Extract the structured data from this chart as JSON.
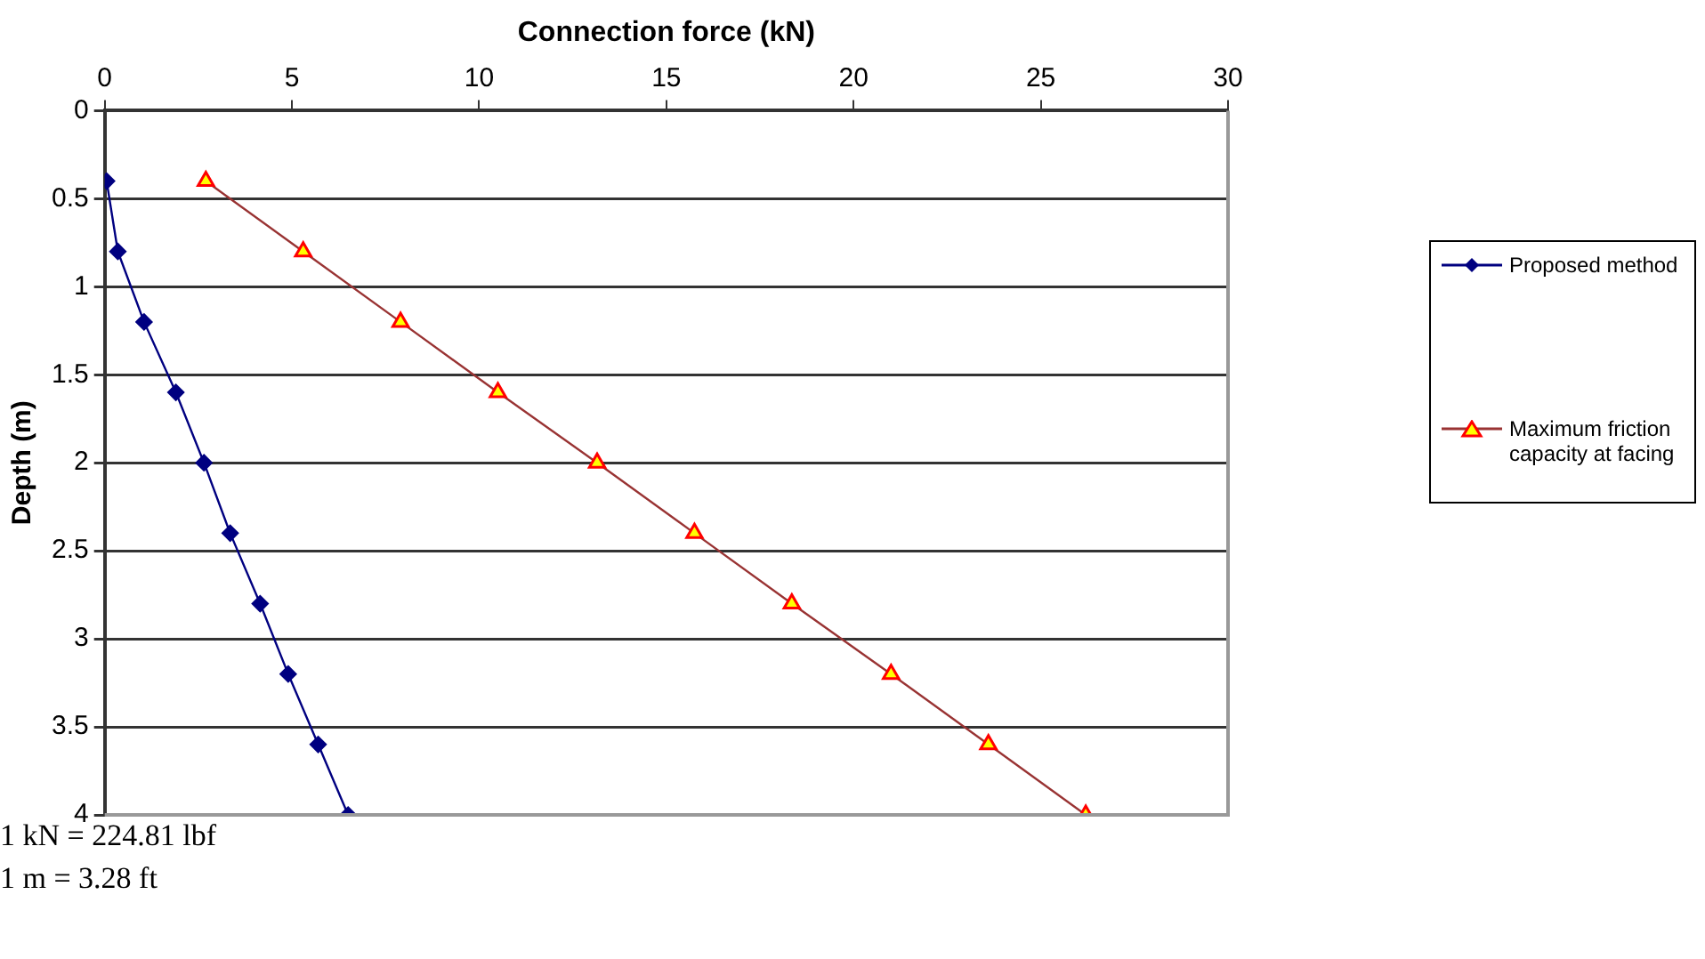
{
  "chart_data": {
    "type": "line",
    "xlabel": "Connection force (kN)",
    "ylabel": "Depth (m)",
    "xlim": [
      0,
      30
    ],
    "xticks": [
      0,
      5,
      10,
      15,
      20,
      25,
      30
    ],
    "ylim": [
      4,
      0
    ],
    "yticks": [
      0,
      0.5,
      1,
      1.5,
      2,
      2.5,
      3,
      3.5,
      4
    ],
    "grid": "y",
    "legend": "right",
    "series": [
      {
        "name": "Proposed method",
        "color": "#000080",
        "marker": "diamond",
        "x": [
          0.05,
          0.35,
          1.05,
          1.9,
          2.65,
          3.35,
          4.15,
          4.9,
          5.7,
          6.5
        ],
        "values": [
          0.4,
          0.8,
          1.2,
          1.6,
          2.0,
          2.4,
          2.8,
          3.2,
          3.6,
          4.0
        ]
      },
      {
        "name": "Maximum friction capacity at facing",
        "color": "#993333",
        "marker": "triangle",
        "x": [
          2.7,
          5.3,
          7.9,
          10.5,
          13.15,
          15.75,
          18.35,
          21.0,
          23.6,
          26.2
        ],
        "values": [
          0.4,
          0.8,
          1.2,
          1.6,
          2.0,
          2.4,
          2.8,
          3.2,
          3.6,
          4.0
        ]
      }
    ],
    "annotations": [
      "1 kN = 224.81 lbf",
      "1 m = 3.28 ft"
    ]
  }
}
